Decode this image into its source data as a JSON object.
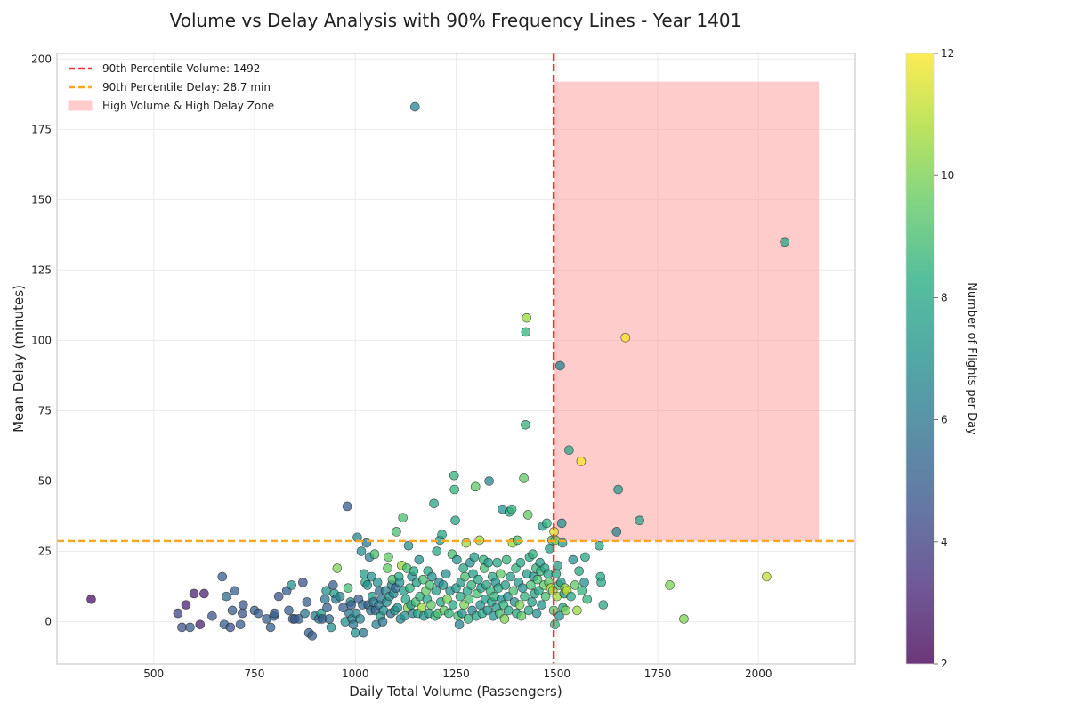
{
  "chart_data": {
    "type": "scatter",
    "title": "Volume vs Delay Analysis with 90% Frequency Lines - Year 1401",
    "xlabel": "Daily Total Volume (Passengers)",
    "ylabel": "Mean Delay (minutes)",
    "xlim": [
      260,
      2240
    ],
    "ylim": [
      -15,
      202
    ],
    "x_ticks": [
      500,
      750,
      1000,
      1250,
      1500,
      1750,
      2000
    ],
    "y_ticks": [
      0,
      25,
      50,
      75,
      100,
      125,
      150,
      175,
      200
    ],
    "grid": true,
    "legend_position": "top-left",
    "colorbar": {
      "label": "Number of Flights per Day",
      "min": 2,
      "max": 12,
      "ticks": [
        2,
        4,
        6,
        8,
        10,
        12
      ],
      "colormap": "viridis"
    },
    "reference_lines": {
      "volume_p90": {
        "value": 1492,
        "label": "90th Percentile Volume: 1492",
        "color": "#e53935"
      },
      "delay_p90": {
        "value": 28.7,
        "label": "90th Percentile Delay: 28.7 min",
        "color": "#f9a825"
      }
    },
    "zone": {
      "label": "High Volume & High Delay Zone",
      "x": [
        1492,
        2150
      ],
      "y": [
        28.7,
        192
      ],
      "color": "#ff9999"
    },
    "points": [
      [
        345,
        8,
        2.5
      ],
      [
        560,
        3,
        4
      ],
      [
        570,
        -2,
        4.5
      ],
      [
        580,
        6,
        3
      ],
      [
        590,
        -2,
        5
      ],
      [
        600,
        10,
        3
      ],
      [
        615,
        -1,
        3
      ],
      [
        625,
        10,
        3
      ],
      [
        645,
        2,
        4.5
      ],
      [
        670,
        16,
        5
      ],
      [
        675,
        -1,
        5
      ],
      [
        680,
        9,
        5.5
      ],
      [
        690,
        -2,
        4.5
      ],
      [
        695,
        4,
        5
      ],
      [
        700,
        11,
        5
      ],
      [
        715,
        -1,
        5
      ],
      [
        720,
        3,
        4.5
      ],
      [
        722,
        6,
        4.5
      ],
      [
        750,
        4,
        5
      ],
      [
        760,
        3,
        5
      ],
      [
        780,
        1,
        5
      ],
      [
        790,
        -2,
        5
      ],
      [
        798,
        2,
        5
      ],
      [
        800,
        3,
        5
      ],
      [
        810,
        9,
        4.5
      ],
      [
        830,
        11,
        5
      ],
      [
        835,
        4,
        5
      ],
      [
        842,
        13,
        7
      ],
      [
        845,
        1,
        5
      ],
      [
        850,
        1,
        4.5
      ],
      [
        860,
        1,
        5
      ],
      [
        870,
        14,
        4.5
      ],
      [
        875,
        3,
        6
      ],
      [
        880,
        7,
        5
      ],
      [
        885,
        -4,
        5
      ],
      [
        893,
        -5,
        5
      ],
      [
        900,
        2,
        6
      ],
      [
        910,
        1,
        6
      ],
      [
        915,
        3,
        7.5
      ],
      [
        918,
        1,
        5
      ],
      [
        925,
        8,
        6
      ],
      [
        928,
        11,
        7
      ],
      [
        930,
        5,
        5
      ],
      [
        935,
        1,
        5.5
      ],
      [
        940,
        -2,
        7
      ],
      [
        945,
        13,
        5
      ],
      [
        948,
        10,
        7.5
      ],
      [
        952,
        8,
        6
      ],
      [
        955,
        19,
        10
      ],
      [
        962,
        9,
        6.5
      ],
      [
        970,
        5,
        5
      ],
      [
        975,
        0,
        7
      ],
      [
        980,
        41,
        5
      ],
      [
        982,
        12,
        9
      ],
      [
        985,
        3,
        6
      ],
      [
        988,
        7,
        7
      ],
      [
        990,
        6,
        5
      ],
      [
        992,
        1,
        6.5
      ],
      [
        995,
        -1,
        6
      ],
      [
        1000,
        -4,
        7
      ],
      [
        1002,
        3,
        6.5
      ],
      [
        1005,
        30,
        6.5
      ],
      [
        1008,
        8,
        5
      ],
      [
        1012,
        1,
        6.5
      ],
      [
        1015,
        25,
        7
      ],
      [
        1018,
        6,
        5.5
      ],
      [
        1020,
        -4,
        6
      ],
      [
        1022,
        17,
        7.5
      ],
      [
        1025,
        14,
        8
      ],
      [
        1028,
        28,
        6
      ],
      [
        1030,
        13,
        7
      ],
      [
        1032,
        6,
        5
      ],
      [
        1035,
        23,
        6.5
      ],
      [
        1038,
        4,
        6
      ],
      [
        1040,
        16,
        7
      ],
      [
        1042,
        9,
        7.5
      ],
      [
        1045,
        7,
        6
      ],
      [
        1048,
        24,
        9
      ],
      [
        1050,
        4,
        5
      ],
      [
        1052,
        -1,
        6.5
      ],
      [
        1055,
        14,
        7
      ],
      [
        1058,
        6,
        6
      ],
      [
        1060,
        11,
        5.5
      ],
      [
        1063,
        2,
        7.5
      ],
      [
        1065,
        8,
        6
      ],
      [
        1068,
        0,
        6
      ],
      [
        1070,
        4,
        7
      ],
      [
        1075,
        11,
        6.5
      ],
      [
        1078,
        7,
        7
      ],
      [
        1080,
        19,
        9.5
      ],
      [
        1082,
        23,
        9.5
      ],
      [
        1085,
        9,
        7
      ],
      [
        1088,
        3,
        5.5
      ],
      [
        1090,
        13,
        6
      ],
      [
        1092,
        15,
        9
      ],
      [
        1095,
        10,
        6.5
      ],
      [
        1098,
        4,
        7.5
      ],
      [
        1100,
        12,
        5.5
      ],
      [
        1102,
        32,
        9
      ],
      [
        1105,
        5,
        7
      ],
      [
        1108,
        16,
        8
      ],
      [
        1110,
        14,
        7
      ],
      [
        1112,
        1,
        6.5
      ],
      [
        1115,
        20,
        10.5
      ],
      [
        1118,
        37,
        9
      ],
      [
        1120,
        11,
        7.5
      ],
      [
        1122,
        2,
        7
      ],
      [
        1125,
        8,
        8
      ],
      [
        1128,
        19,
        9
      ],
      [
        1130,
        5,
        10
      ],
      [
        1132,
        27,
        7
      ],
      [
        1135,
        12,
        8.5
      ],
      [
        1138,
        6,
        7.5
      ],
      [
        1140,
        16,
        7
      ],
      [
        1142,
        3,
        6.5
      ],
      [
        1145,
        18,
        8
      ],
      [
        1148,
        183,
        6.5
      ],
      [
        1150,
        7,
        9
      ],
      [
        1152,
        14,
        7.5
      ],
      [
        1155,
        3,
        8
      ],
      [
        1158,
        22,
        7
      ],
      [
        1160,
        9,
        8.5
      ],
      [
        1165,
        5,
        10.5
      ],
      [
        1168,
        15,
        9
      ],
      [
        1170,
        2,
        7
      ],
      [
        1175,
        11,
        9.5
      ],
      [
        1178,
        8,
        8
      ],
      [
        1180,
        18,
        8
      ],
      [
        1182,
        3,
        7.5
      ],
      [
        1185,
        13,
        9
      ],
      [
        1188,
        6,
        9.5
      ],
      [
        1190,
        16,
        7
      ],
      [
        1195,
        42,
        8
      ],
      [
        1198,
        2,
        8.5
      ],
      [
        1200,
        11,
        7.5
      ],
      [
        1202,
        25,
        8
      ],
      [
        1205,
        3,
        9
      ],
      [
        1208,
        14,
        6.5
      ],
      [
        1210,
        29,
        7.5
      ],
      [
        1212,
        7,
        8
      ],
      [
        1215,
        31,
        8
      ],
      [
        1218,
        13,
        7
      ],
      [
        1220,
        4,
        9.5
      ],
      [
        1225,
        17,
        7
      ],
      [
        1228,
        8,
        10
      ],
      [
        1232,
        3,
        8.5
      ],
      [
        1235,
        11,
        7
      ],
      [
        1240,
        24,
        9
      ],
      [
        1242,
        6,
        8
      ],
      [
        1245,
        52,
        8.5
      ],
      [
        1246,
        47,
        8.5
      ],
      [
        1248,
        36,
        8
      ],
      [
        1250,
        12,
        7.5
      ],
      [
        1252,
        22,
        7
      ],
      [
        1255,
        2,
        9
      ],
      [
        1258,
        -1,
        6.5
      ],
      [
        1260,
        9,
        8
      ],
      [
        1262,
        14,
        7.5
      ],
      [
        1265,
        3,
        7
      ],
      [
        1268,
        19,
        8
      ],
      [
        1270,
        6,
        10
      ],
      [
        1272,
        16,
        9
      ],
      [
        1275,
        28,
        10.5
      ],
      [
        1278,
        11,
        8
      ],
      [
        1280,
        1,
        8.5
      ],
      [
        1282,
        8,
        9
      ],
      [
        1285,
        21,
        7
      ],
      [
        1288,
        13,
        8.5
      ],
      [
        1290,
        4,
        6.5
      ],
      [
        1292,
        17,
        7.5
      ],
      [
        1295,
        23,
        7.5
      ],
      [
        1298,
        48,
        9.5
      ],
      [
        1300,
        2,
        8
      ],
      [
        1302,
        10,
        9
      ],
      [
        1305,
        15,
        8
      ],
      [
        1308,
        29,
        10.5
      ],
      [
        1310,
        6,
        7
      ],
      [
        1312,
        12,
        7.5
      ],
      [
        1315,
        3,
        8
      ],
      [
        1318,
        22,
        8.5
      ],
      [
        1320,
        19,
        9
      ],
      [
        1322,
        8,
        7.5
      ],
      [
        1325,
        13,
        8
      ],
      [
        1328,
        4,
        7
      ],
      [
        1330,
        21,
        7.5
      ],
      [
        1332,
        50,
        6.5
      ],
      [
        1335,
        11,
        8.5
      ],
      [
        1338,
        7,
        7.5
      ],
      [
        1340,
        16,
        8
      ],
      [
        1342,
        2,
        7
      ],
      [
        1345,
        9,
        8.5
      ],
      [
        1348,
        14,
        7
      ],
      [
        1350,
        5,
        7.5
      ],
      [
        1352,
        21,
        8
      ],
      [
        1355,
        12,
        8
      ],
      [
        1358,
        3,
        9
      ],
      [
        1360,
        17,
        9.5
      ],
      [
        1362,
        8,
        7
      ],
      [
        1365,
        40,
        7
      ],
      [
        1368,
        6,
        8.5
      ],
      [
        1370,
        1,
        10
      ],
      [
        1372,
        13,
        7.5
      ],
      [
        1375,
        22,
        8.5
      ],
      [
        1378,
        9,
        7
      ],
      [
        1380,
        4,
        8
      ],
      [
        1382,
        39,
        8
      ],
      [
        1385,
        16,
        7.5
      ],
      [
        1388,
        40,
        8.5
      ],
      [
        1390,
        28,
        10.5
      ],
      [
        1392,
        11,
        9
      ],
      [
        1395,
        7,
        7
      ],
      [
        1398,
        19,
        8.5
      ],
      [
        1400,
        3,
        8
      ],
      [
        1402,
        29,
        9
      ],
      [
        1405,
        14,
        7.5
      ],
      [
        1408,
        6,
        10
      ],
      [
        1410,
        21,
        8
      ],
      [
        1412,
        2,
        9.5
      ],
      [
        1415,
        12,
        7
      ],
      [
        1418,
        51,
        9.5
      ],
      [
        1420,
        9,
        8.5
      ],
      [
        1422,
        70,
        8.5
      ],
      [
        1423,
        103,
        8.5
      ],
      [
        1425,
        108,
        10.5
      ],
      [
        1426,
        17,
        7.5
      ],
      [
        1428,
        38,
        9.5
      ],
      [
        1430,
        4,
        8
      ],
      [
        1432,
        23,
        8
      ],
      [
        1435,
        13,
        9
      ],
      [
        1438,
        7,
        7.5
      ],
      [
        1440,
        24,
        8.5
      ],
      [
        1442,
        16,
        7
      ],
      [
        1445,
        10,
        8
      ],
      [
        1448,
        19,
        8.5
      ],
      [
        1450,
        3,
        7
      ],
      [
        1452,
        15,
        9
      ],
      [
        1455,
        11,
        8
      ],
      [
        1458,
        21,
        7.5
      ],
      [
        1460,
        18,
        8.5
      ],
      [
        1462,
        6,
        7
      ],
      [
        1465,
        34,
        7.5
      ],
      [
        1468,
        13,
        9.5
      ],
      [
        1470,
        19,
        8
      ],
      [
        1472,
        9,
        9
      ],
      [
        1475,
        35,
        8.5
      ],
      [
        1478,
        17,
        8
      ],
      [
        1480,
        14,
        9.5
      ],
      [
        1482,
        26,
        7.5
      ],
      [
        1485,
        12,
        11
      ],
      [
        1488,
        29,
        9
      ],
      [
        1490,
        11,
        10.5
      ],
      [
        1492,
        4,
        9.5
      ],
      [
        1493,
        32,
        11.5
      ],
      [
        1495,
        -1,
        8.5
      ],
      [
        1496,
        29,
        10
      ],
      [
        1498,
        17,
        8
      ],
      [
        1500,
        9,
        10.5
      ],
      [
        1502,
        20,
        7.5
      ],
      [
        1505,
        13,
        9
      ],
      [
        1506,
        2,
        7
      ],
      [
        1508,
        91,
        6.5
      ],
      [
        1510,
        14,
        7.5
      ],
      [
        1512,
        35,
        7
      ],
      [
        1514,
        28,
        7.5
      ],
      [
        1515,
        5,
        8
      ],
      [
        1518,
        10,
        7.5
      ],
      [
        1520,
        12,
        10.5
      ],
      [
        1522,
        4,
        10
      ],
      [
        1525,
        11,
        11
      ],
      [
        1530,
        61,
        8
      ],
      [
        1535,
        9,
        8
      ],
      [
        1540,
        22,
        7
      ],
      [
        1545,
        13,
        9.5
      ],
      [
        1550,
        4,
        10.5
      ],
      [
        1555,
        18,
        8
      ],
      [
        1560,
        57,
        12
      ],
      [
        1562,
        11,
        8.5
      ],
      [
        1568,
        14,
        7
      ],
      [
        1570,
        23,
        8
      ],
      [
        1575,
        8,
        8.5
      ],
      [
        1605,
        27,
        8
      ],
      [
        1608,
        16,
        8
      ],
      [
        1610,
        14,
        8
      ],
      [
        1615,
        6,
        8
      ],
      [
        1648,
        32,
        6.5
      ],
      [
        1652,
        47,
        7.5
      ],
      [
        1670,
        101,
        12
      ],
      [
        1705,
        36,
        8
      ],
      [
        1780,
        13,
        10
      ],
      [
        1815,
        1,
        10
      ],
      [
        2020,
        16,
        11
      ],
      [
        2065,
        135,
        8
      ]
    ]
  }
}
